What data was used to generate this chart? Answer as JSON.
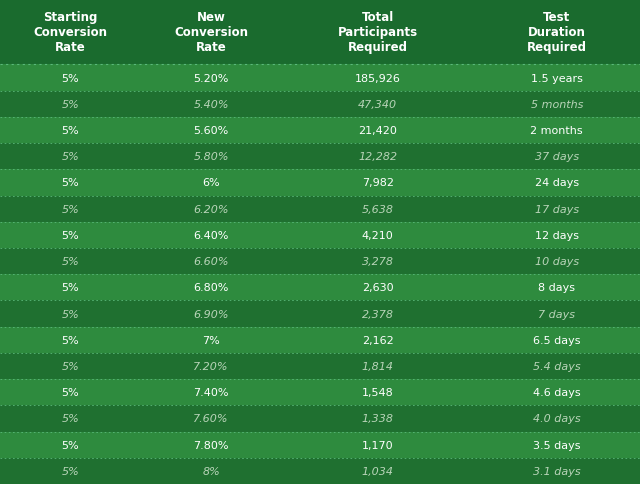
{
  "headers": [
    "Starting\nConversion\nRate",
    "New\nConversion\nRate",
    "Total\nParticipants\nRequired",
    "Test\nDuration\nRequired"
  ],
  "rows": [
    [
      "5%",
      "5.20%",
      "185,926",
      "1.5 years"
    ],
    [
      "5%",
      "5.40%",
      "47,340",
      "5 months"
    ],
    [
      "5%",
      "5.60%",
      "21,420",
      "2 months"
    ],
    [
      "5%",
      "5.80%",
      "12,282",
      "37 days"
    ],
    [
      "5%",
      "6%",
      "7,982",
      "24 days"
    ],
    [
      "5%",
      "6.20%",
      "5,638",
      "17 days"
    ],
    [
      "5%",
      "6.40%",
      "4,210",
      "12 days"
    ],
    [
      "5%",
      "6.60%",
      "3,278",
      "10 days"
    ],
    [
      "5%",
      "6.80%",
      "2,630",
      "8 days"
    ],
    [
      "5%",
      "6.90%",
      "2,378",
      "7 days"
    ],
    [
      "5%",
      "7%",
      "2,162",
      "6.5 days"
    ],
    [
      "5%",
      "7.20%",
      "1,814",
      "5.4 days"
    ],
    [
      "5%",
      "7.40%",
      "1,548",
      "4.6 days"
    ],
    [
      "5%",
      "7.60%",
      "1,338",
      "4.0 days"
    ],
    [
      "5%",
      "7.80%",
      "1,170",
      "3.5 days"
    ],
    [
      "5%",
      "8%",
      "1,034",
      "3.1 days"
    ]
  ],
  "header_bg": "#1a6b2e",
  "row_bg_light": "#2e8b3e",
  "row_bg_dark": "#1f7030",
  "text_color_light": "#ffffff",
  "text_color_dark": "#b8d4b8",
  "header_text_color": "#ffffff",
  "border_color": "#5ab87a",
  "fig_bg": "#1f7030"
}
